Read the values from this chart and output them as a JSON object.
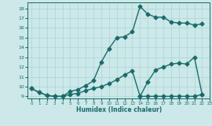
{
  "title": "",
  "xlabel": "Humidex (Indice chaleur)",
  "bg_color": "#cce8e8",
  "line_color": "#1a6b6b",
  "grid_color": "#aad4d4",
  "xlim": [
    -0.5,
    23
  ],
  "ylim": [
    8.8,
    18.6
  ],
  "xticks": [
    0,
    1,
    2,
    3,
    4,
    5,
    6,
    7,
    8,
    9,
    10,
    11,
    12,
    13,
    14,
    15,
    16,
    17,
    18,
    19,
    20,
    21,
    22,
    23
  ],
  "yticks": [
    9,
    10,
    11,
    12,
    13,
    14,
    15,
    16,
    17,
    18
  ],
  "line1_x": [
    0,
    1,
    2,
    3,
    4,
    5,
    6,
    7,
    8,
    9,
    10,
    11,
    12,
    13,
    14,
    15,
    16,
    17,
    18,
    19,
    20,
    21,
    22
  ],
  "line1_y": [
    9.8,
    9.4,
    9.1,
    9.0,
    9.0,
    9.5,
    9.7,
    10.1,
    10.6,
    12.5,
    13.9,
    15.0,
    15.1,
    15.6,
    18.2,
    17.4,
    17.1,
    17.1,
    16.6,
    16.5,
    16.5,
    16.3,
    16.4
  ],
  "line2_x": [
    0,
    1,
    2,
    3,
    4,
    5,
    6,
    7,
    8,
    9,
    10,
    11,
    12,
    13,
    14,
    15,
    16,
    17,
    18,
    19,
    20,
    21,
    22
  ],
  "line2_y": [
    9.8,
    9.4,
    9.1,
    9.0,
    9.0,
    9.2,
    9.3,
    9.6,
    9.8,
    10.0,
    10.3,
    10.7,
    11.2,
    11.6,
    9.0,
    9.0,
    9.0,
    9.0,
    9.0,
    9.0,
    9.0,
    9.0,
    9.2
  ],
  "line3_x": [
    14,
    15,
    16,
    17,
    18,
    19,
    20,
    21,
    22
  ],
  "line3_y": [
    9.0,
    10.5,
    11.7,
    12.0,
    12.3,
    12.4,
    12.3,
    13.0,
    9.2
  ],
  "marker_size": 2.5,
  "linewidth": 1.0
}
